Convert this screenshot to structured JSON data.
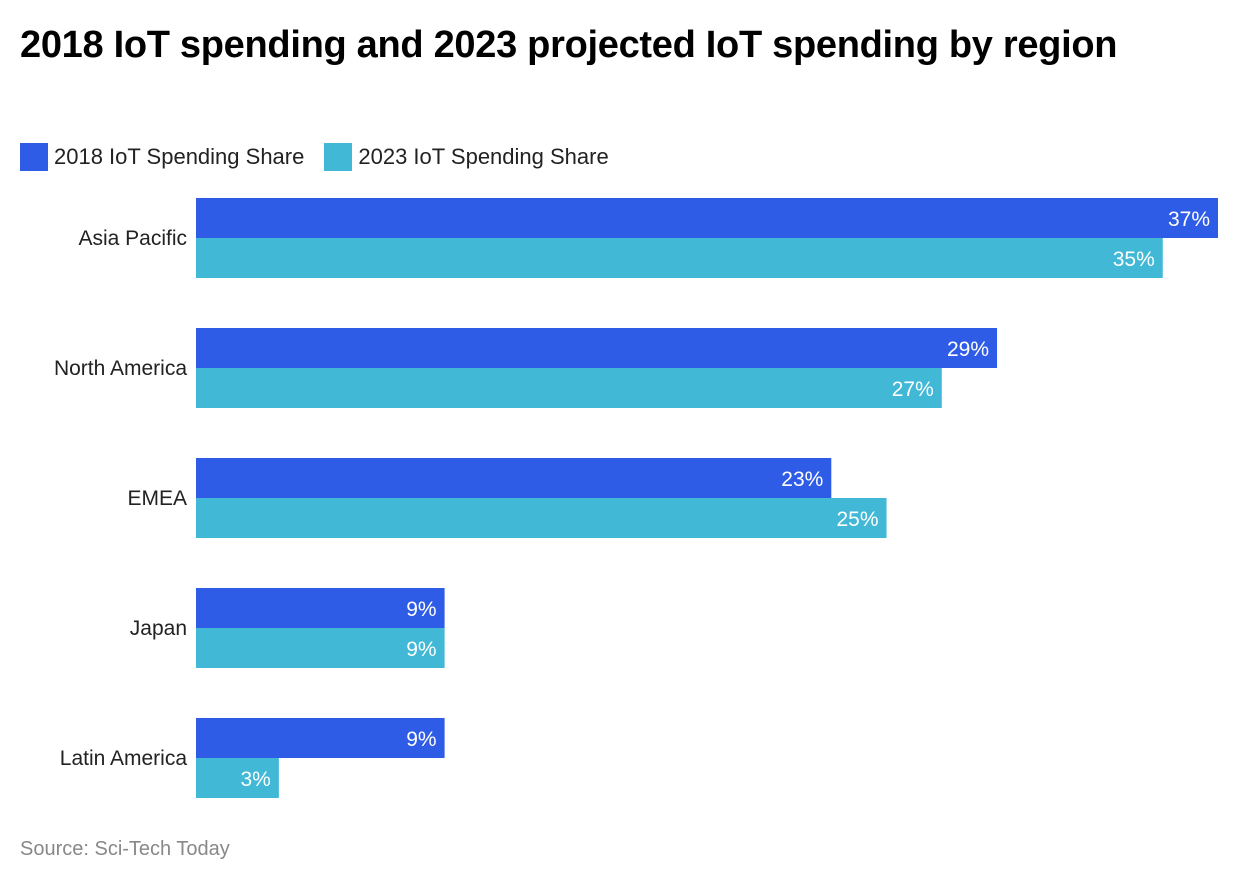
{
  "chart_data": {
    "type": "bar",
    "orientation": "horizontal",
    "title": "2018 IoT spending and 2023 projected IoT spending by region",
    "categories": [
      "Asia Pacific",
      "North America",
      "EMEA",
      "Japan",
      "Latin America"
    ],
    "series": [
      {
        "name": "2018 IoT Spending Share",
        "color": "#2f5ce6",
        "values": [
          37,
          29,
          23,
          9,
          9
        ]
      },
      {
        "name": "2023 IoT Spending Share",
        "color": "#40b8d6",
        "values": [
          35,
          27,
          25,
          9,
          3
        ]
      }
    ],
    "value_suffix": "%",
    "xlabel": "",
    "ylabel": "",
    "xlim": [
      0,
      37
    ],
    "grid": false,
    "legend_position": "top-left",
    "source": "Source: Sci-Tech Today"
  }
}
